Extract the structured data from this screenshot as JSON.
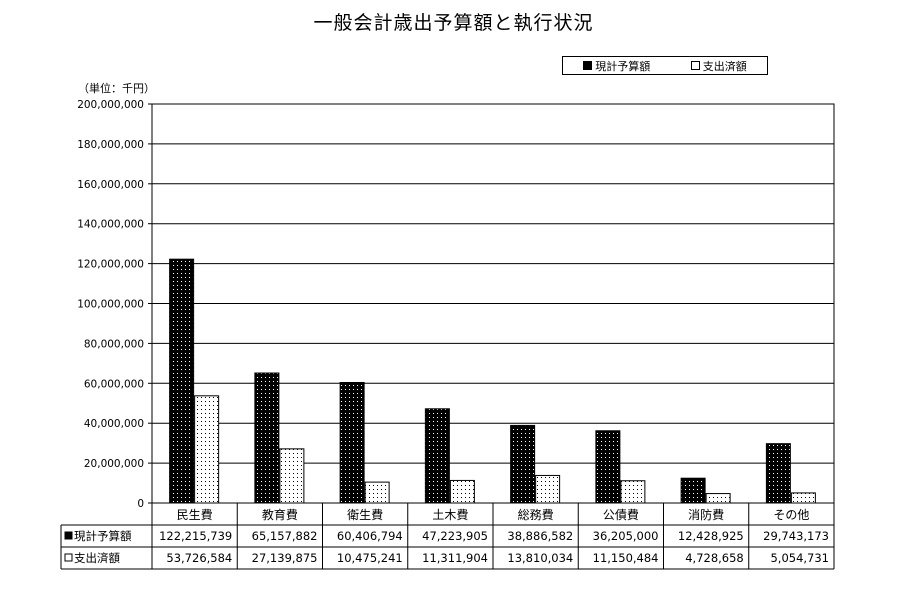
{
  "chart_data": {
    "type": "bar",
    "title": "一般会計歳出予算額と執行状況",
    "unit_label": "（単位：千円）",
    "categories": [
      "民生費",
      "教育費",
      "衛生費",
      "土木費",
      "総務費",
      "公債費",
      "消防費",
      "その他"
    ],
    "series": [
      {
        "name": "現計予算額",
        "values": [
          122215739,
          65157882,
          60406794,
          47223905,
          38886582,
          36205000,
          12428925,
          29743173
        ]
      },
      {
        "name": "支出済額",
        "values": [
          53726584,
          27139875,
          10475241,
          11311904,
          13810034,
          11150484,
          4728658,
          5054731
        ]
      }
    ],
    "ylim": [
      0,
      200000000
    ],
    "yticks": [
      "0",
      "20,000,000",
      "40,000,000",
      "60,000,000",
      "80,000,000",
      "100,000,000",
      "120,000,000",
      "140,000,000",
      "160,000,000",
      "180,000,000",
      "200,000,000"
    ],
    "table": {
      "rows": [
        {
          "label": "現計予算額",
          "values": [
            "122,215,739",
            "65,157,882",
            "60,406,794",
            "47,223,905",
            "38,886,582",
            "36,205,000",
            "12,428,925",
            "29,743,173"
          ]
        },
        {
          "label": "支出済額",
          "values": [
            "53,726,584",
            "27,139,875",
            "10,475,241",
            "11,311,904",
            "13,810,034",
            "11,150,484",
            "4,728,658",
            "5,054,731"
          ]
        }
      ]
    },
    "grid": true,
    "legend_position": "top-right",
    "colors": {
      "budget_fill": "#000000",
      "budget_dots": "#ffffff",
      "spent_fill": "#ffffff",
      "spent_dots": "#000000"
    }
  }
}
